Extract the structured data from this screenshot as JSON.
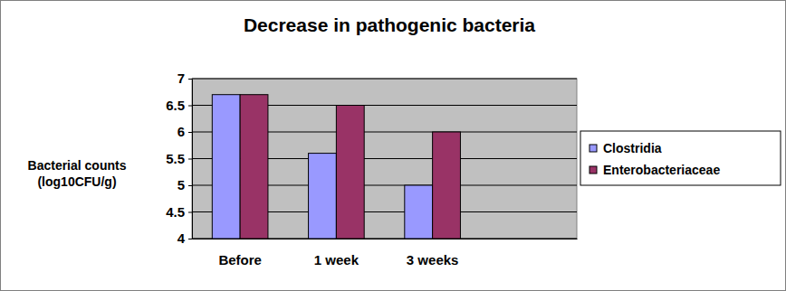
{
  "chart_data": {
    "type": "bar",
    "title": "Decrease in pathogenic bacteria",
    "y_label": "Bacterial counts\n(log10CFU/g)",
    "categories": [
      "Before",
      "1 week",
      "3 weeks",
      null
    ],
    "series": [
      {
        "name": "Clostridia",
        "color": "#9999ff",
        "values": [
          6.7,
          5.6,
          5.0,
          null
        ]
      },
      {
        "name": "Enterobacteriaceae",
        "color": "#993366",
        "values": [
          6.7,
          6.5,
          6.0,
          null
        ]
      }
    ],
    "ylim": [
      4,
      7
    ],
    "yticks": [
      4,
      4.5,
      5,
      5.5,
      6,
      6.5,
      7
    ],
    "grid": true,
    "legend": "right"
  }
}
